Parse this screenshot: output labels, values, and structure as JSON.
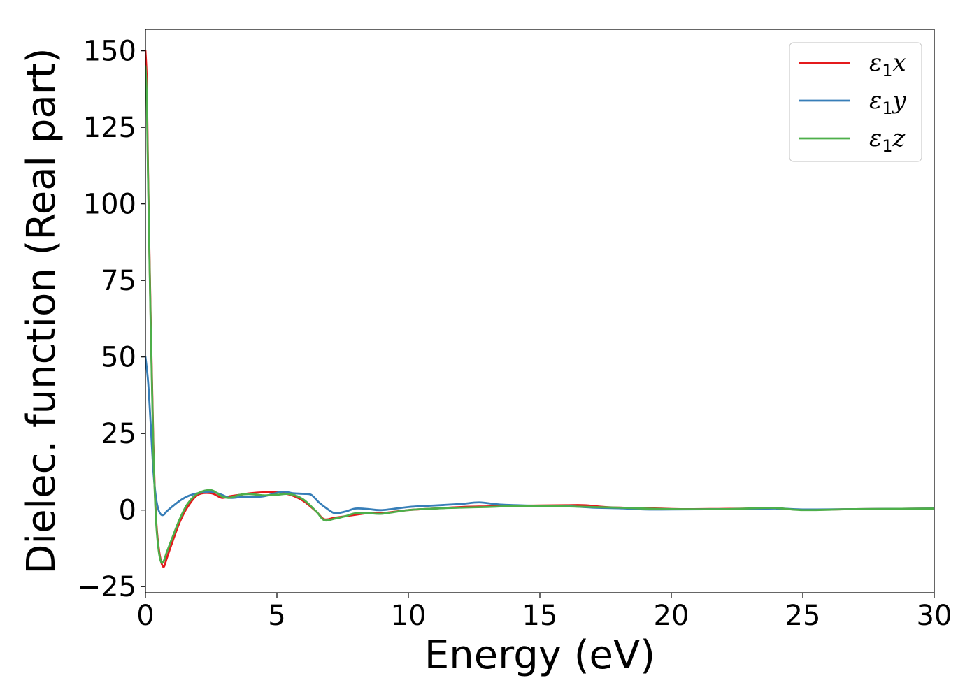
{
  "chart_data": {
    "type": "line",
    "xlabel": "Energy (eV)",
    "ylabel": "Dielec. function (Real part)",
    "xlim": [
      0,
      30
    ],
    "ylim": [
      -27,
      157
    ],
    "xticks": [
      0,
      5,
      10,
      15,
      20,
      25,
      30
    ],
    "xtick_labels": [
      "0",
      "5",
      "10",
      "15",
      "20",
      "25",
      "30"
    ],
    "yticks": [
      -25,
      0,
      25,
      50,
      75,
      100,
      125,
      150
    ],
    "ytick_labels": [
      "−25",
      "0",
      "25",
      "50",
      "75",
      "100",
      "125",
      "150"
    ],
    "grid": false,
    "legend_position": "top-right",
    "series": [
      {
        "name": "ε1x",
        "legend": {
          "main": "ε",
          "sub": "1",
          "suffix": "x"
        },
        "color": "#e41a1c",
        "x": [
          0,
          0.05,
          0.1,
          0.2,
          0.3,
          0.4,
          0.5,
          0.6,
          0.7,
          0.8,
          1.0,
          1.3,
          1.6,
          2.0,
          2.5,
          2.9,
          3.2,
          3.6,
          4.0,
          4.5,
          5.0,
          5.5,
          6.0,
          6.5,
          6.8,
          7.2,
          7.6,
          8.0,
          8.5,
          9.0,
          10,
          11,
          12,
          13,
          14,
          15,
          16,
          16.7,
          17.5,
          18.5,
          19.5,
          20.5,
          22,
          23.5,
          24,
          25,
          27,
          30
        ],
        "y": [
          150,
          140,
          110,
          62,
          22,
          -2,
          -12,
          -17,
          -18.5,
          -16,
          -11,
          -4,
          1,
          5,
          5.5,
          4,
          4.5,
          5,
          5.5,
          5.8,
          5.8,
          5,
          3,
          -0.5,
          -3,
          -2.5,
          -2,
          -1.5,
          -1,
          -1,
          0,
          0.5,
          1,
          1.2,
          1.4,
          1.5,
          1.6,
          1.6,
          1,
          0.7,
          0.5,
          0.3,
          0.4,
          0.5,
          0.6,
          0.1,
          0.3,
          0.5
        ]
      },
      {
        "name": "ε1y",
        "legend": {
          "main": "ε",
          "sub": "1",
          "suffix": "y"
        },
        "color": "#377eb8",
        "x": [
          0,
          0.1,
          0.2,
          0.3,
          0.4,
          0.5,
          0.6,
          0.7,
          0.8,
          1.0,
          1.3,
          1.6,
          2.0,
          2.5,
          2.9,
          3.2,
          3.6,
          4.0,
          4.5,
          5.2,
          5.6,
          6.0,
          6.3,
          6.6,
          6.9,
          7.2,
          7.6,
          8.0,
          8.5,
          9.0,
          10,
          11,
          12,
          12.7,
          13.5,
          15,
          16,
          17,
          18,
          19,
          20,
          22,
          24,
          25,
          27,
          30
        ],
        "y": [
          50,
          42,
          28,
          13,
          4,
          0,
          -1.5,
          -1.5,
          -0.5,
          1,
          3,
          4.5,
          5.5,
          6,
          5,
          4,
          4.2,
          4.3,
          4.5,
          6,
          5.5,
          5.3,
          5,
          2.5,
          0.5,
          -1,
          -0.5,
          0.5,
          0.3,
          0,
          1,
          1.5,
          2,
          2.5,
          1.8,
          1.4,
          1.3,
          0.8,
          0.6,
          0.2,
          0.2,
          0.3,
          0.5,
          0.2,
          0.3,
          0.5
        ]
      },
      {
        "name": "ε1z",
        "legend": {
          "main": "ε",
          "sub": "1",
          "suffix": "z"
        },
        "color": "#4daf4a",
        "x": [
          0,
          0.05,
          0.1,
          0.2,
          0.3,
          0.4,
          0.5,
          0.6,
          0.7,
          0.8,
          1.0,
          1.3,
          1.6,
          2.0,
          2.5,
          2.9,
          3.2,
          3.6,
          4.0,
          4.5,
          5.0,
          5.5,
          6.0,
          6.5,
          6.8,
          7.2,
          7.6,
          8.0,
          8.5,
          9.0,
          10,
          11,
          12,
          13,
          14,
          15,
          16,
          17,
          18,
          19,
          20,
          22,
          23.8,
          25,
          27,
          30
        ],
        "y": [
          145,
          135,
          108,
          60,
          20,
          -3,
          -13,
          -17,
          -16.5,
          -14,
          -9.5,
          -3,
          2,
          5.5,
          6.5,
          4.5,
          4,
          5,
          5.2,
          4.8,
          5,
          5.2,
          3.5,
          -0.5,
          -3.3,
          -2.8,
          -2,
          -1,
          -1,
          -1.2,
          0,
          0.5,
          0.8,
          1,
          1.3,
          1.3,
          1.2,
          1,
          0.8,
          0.5,
          0.3,
          0.3,
          0.7,
          0,
          0.3,
          0.5
        ]
      }
    ]
  }
}
